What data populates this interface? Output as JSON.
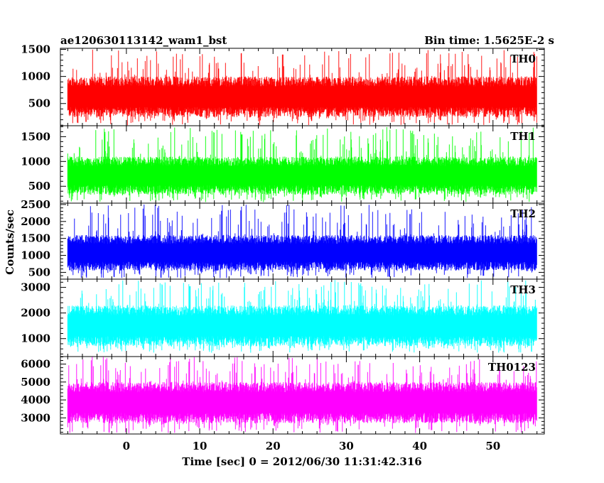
{
  "header": {
    "title": "ae120630113142_wam1_bst",
    "bin_time": "Bin time: 1.5625E-2 s"
  },
  "chart_data": {
    "type": "line",
    "xlabel": "Time [sec] 0 = 2012/06/30 11:31:42.316",
    "ylabel": "Counts/sec",
    "xlim": [
      -9,
      57
    ],
    "x_data_range": [
      -8,
      56
    ],
    "x_ticks": [
      0,
      10,
      20,
      30,
      40,
      50
    ],
    "grid": false,
    "panels": [
      {
        "label": "TH0",
        "color": "#ff0000",
        "ylim": [
          90,
          1520
        ],
        "y_ticks": [
          500,
          1000,
          1500
        ],
        "typical_range": [
          250,
          1000
        ],
        "peak_range": [
          100,
          1500
        ]
      },
      {
        "label": "TH1",
        "color": "#00ff00",
        "ylim": [
          160,
          1720
        ],
        "y_ticks": [
          500,
          1000,
          1500
        ],
        "typical_range": [
          330,
          1100
        ],
        "peak_range": [
          180,
          1700
        ]
      },
      {
        "label": "TH2",
        "color": "#0000ff",
        "ylim": [
          300,
          2540
        ],
        "y_ticks": [
          500,
          1000,
          1500,
          2000,
          2500
        ],
        "typical_range": [
          550,
          1600
        ],
        "peak_range": [
          330,
          2500
        ]
      },
      {
        "label": "TH3",
        "color": "#00ffff",
        "ylim": [
          300,
          3320
        ],
        "y_ticks": [
          1000,
          2000,
          3000
        ],
        "typical_range": [
          700,
          2300
        ],
        "peak_range": [
          450,
          3300
        ]
      },
      {
        "label": "TH0123",
        "color": "#ff00ff",
        "ylim": [
          2100,
          6420
        ],
        "y_ticks": [
          3000,
          4000,
          5000,
          6000
        ],
        "typical_range": [
          2700,
          5000
        ],
        "peak_range": [
          2150,
          6400
        ]
      }
    ]
  }
}
